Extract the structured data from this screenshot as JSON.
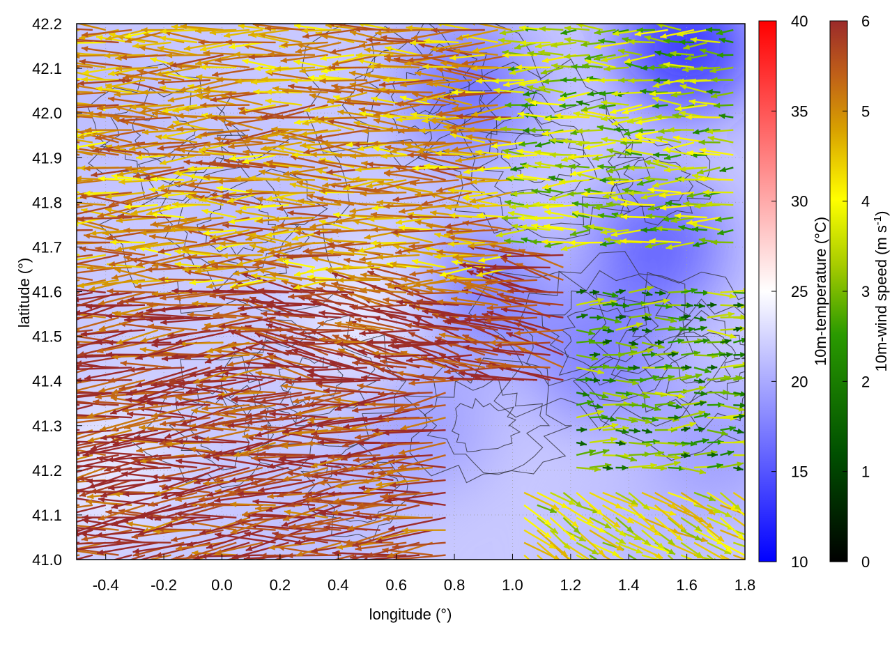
{
  "chart_data": {
    "type": "heatmap",
    "overlay": "wind vector field with terrain contour lines",
    "xlabel": "longitude (°)",
    "ylabel": "latitude (°)",
    "xlim": [
      -0.5,
      1.8
    ],
    "ylim": [
      41.0,
      42.2
    ],
    "x_ticks": [
      "-0.4",
      "-0.2",
      "0.0",
      "0.2",
      "0.4",
      "0.6",
      "0.8",
      "1.0",
      "1.2",
      "1.4",
      "1.6",
      "1.8"
    ],
    "y_ticks": [
      "41.0",
      "41.1",
      "41.2",
      "41.3",
      "41.4",
      "41.5",
      "41.6",
      "41.7",
      "41.8",
      "41.9",
      "42.0",
      "42.1",
      "42.2"
    ],
    "grid": true,
    "temperature_colorbar": {
      "label": "10m-temperature (°C)",
      "range": [
        10,
        40
      ],
      "ticks": [
        "10",
        "15",
        "20",
        "25",
        "30",
        "35",
        "40"
      ],
      "colors": [
        "#0000ff",
        "#ffffff",
        "#ff0000"
      ]
    },
    "wind_colorbar": {
      "label_main": "10m-wind speed (m s",
      "label_sup": "-1",
      "label_end": ")",
      "range": [
        0,
        6
      ],
      "ticks": [
        "0",
        "1",
        "2",
        "3",
        "4",
        "5",
        "6"
      ],
      "colors": [
        "#000000",
        "#005000",
        "#2a9a00",
        "#a8cc00",
        "#ffff00",
        "#d8a000",
        "#c06018",
        "#9b2a2a"
      ]
    },
    "temperature_field_description_free": true,
    "wind_regions": [
      {
        "lon": [
          -0.5,
          0.8
        ],
        "lat": [
          41.0,
          41.6
        ],
        "speed": 5.6,
        "direction_deg": 185
      },
      {
        "lon": [
          0.2,
          1.2
        ],
        "lat": [
          41.4,
          41.8
        ],
        "speed": 5.8,
        "direction_deg": 170
      },
      {
        "lon": [
          -0.5,
          1.0
        ],
        "lat": [
          41.6,
          42.2
        ],
        "speed": 4.5,
        "direction_deg": 180
      },
      {
        "lon": [
          1.0,
          1.8
        ],
        "lat": [
          41.0,
          41.15
        ],
        "speed": 3.2,
        "direction_deg": 330
      },
      {
        "lon": [
          1.2,
          1.8
        ],
        "lat": [
          41.2,
          41.6
        ],
        "speed": 2.0,
        "direction_deg": 0
      },
      {
        "lon": [
          1.0,
          1.8
        ],
        "lat": [
          41.7,
          42.2
        ],
        "speed": 2.5,
        "direction_deg": 180
      }
    ],
    "temperature_samples": [
      {
        "lon": -0.4,
        "lat": 41.2,
        "t": 24
      },
      {
        "lon": -0.2,
        "lat": 41.5,
        "t": 22
      },
      {
        "lon": 0.1,
        "lat": 41.8,
        "t": 21
      },
      {
        "lon": 0.5,
        "lat": 41.55,
        "t": 24
      },
      {
        "lon": 0.4,
        "lat": 41.1,
        "t": 21
      },
      {
        "lon": 0.7,
        "lat": 41.3,
        "t": 19
      },
      {
        "lon": 0.9,
        "lat": 41.6,
        "t": 17
      },
      {
        "lon": 0.85,
        "lat": 42.05,
        "t": 16
      },
      {
        "lon": 1.3,
        "lat": 41.45,
        "t": 17
      },
      {
        "lon": 1.5,
        "lat": 41.7,
        "t": 15
      },
      {
        "lon": 1.6,
        "lat": 42.15,
        "t": 12
      },
      {
        "lon": 1.4,
        "lat": 41.05,
        "t": 21
      },
      {
        "lon": 1.7,
        "lat": 41.25,
        "t": 19
      },
      {
        "lon": -0.4,
        "lat": 42.0,
        "t": 21
      }
    ]
  }
}
